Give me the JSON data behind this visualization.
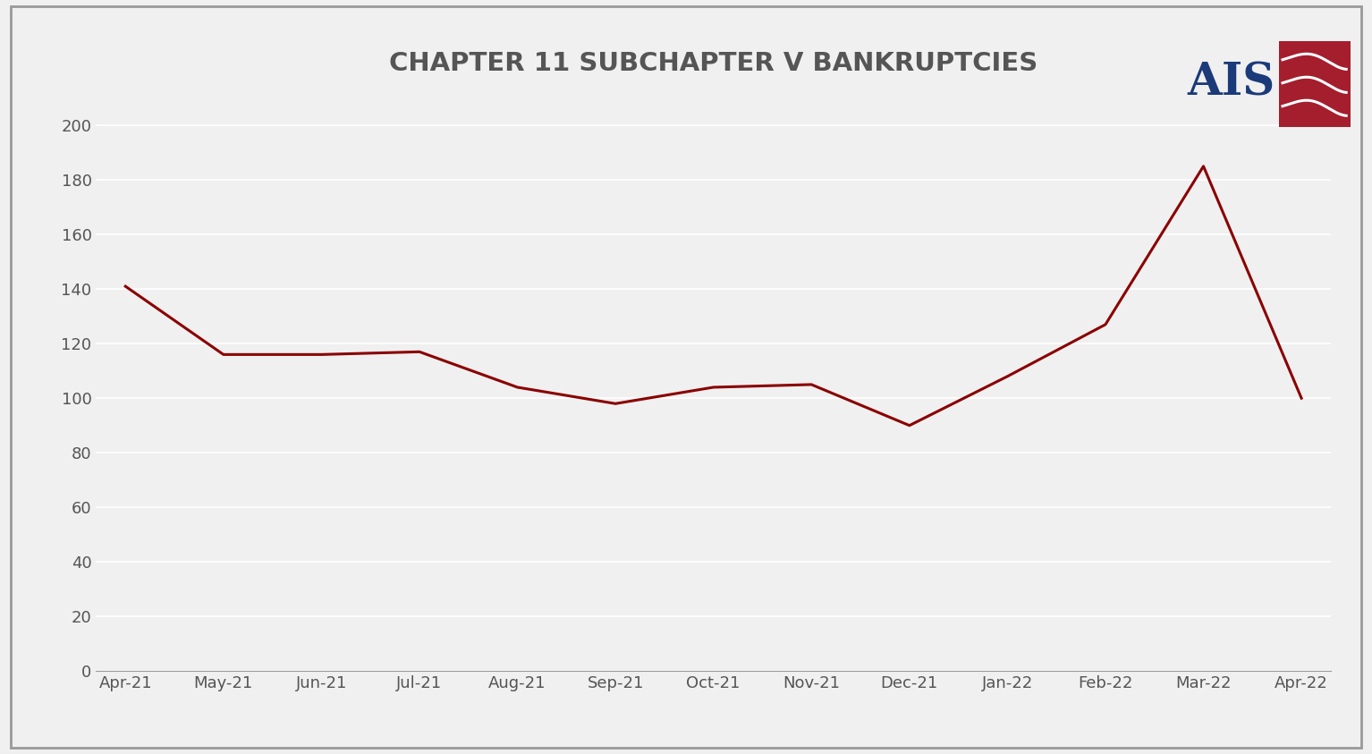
{
  "title": "CHAPTER 11 SUBCHAPTER V BANKRUPTCIES",
  "title_fontsize": 21,
  "title_fontweight": "bold",
  "title_color": "#555555",
  "background_color": "#f0f0f0",
  "plot_bg_color": "#f0f0f0",
  "line_color": "#8B0000",
  "line_width": 2.2,
  "categories": [
    "Apr-21",
    "May-21",
    "Jun-21",
    "Jul-21",
    "Aug-21",
    "Sep-21",
    "Oct-21",
    "Nov-21",
    "Dec-21",
    "Jan-22",
    "Feb-22",
    "Mar-22",
    "Apr-22"
  ],
  "values": [
    141,
    116,
    116,
    117,
    104,
    98,
    104,
    105,
    90,
    108,
    127,
    185,
    100
  ],
  "ylim": [
    0,
    210
  ],
  "yticks": [
    0,
    20,
    40,
    60,
    80,
    100,
    120,
    140,
    160,
    180,
    200
  ],
  "grid_color": "#ffffff",
  "grid_linewidth": 1.2,
  "tick_fontsize": 13,
  "tick_color": "#555555",
  "border_color": "#999999",
  "ais_text_color": "#1a3a7a",
  "ais_wave_color": "#a41e2d"
}
